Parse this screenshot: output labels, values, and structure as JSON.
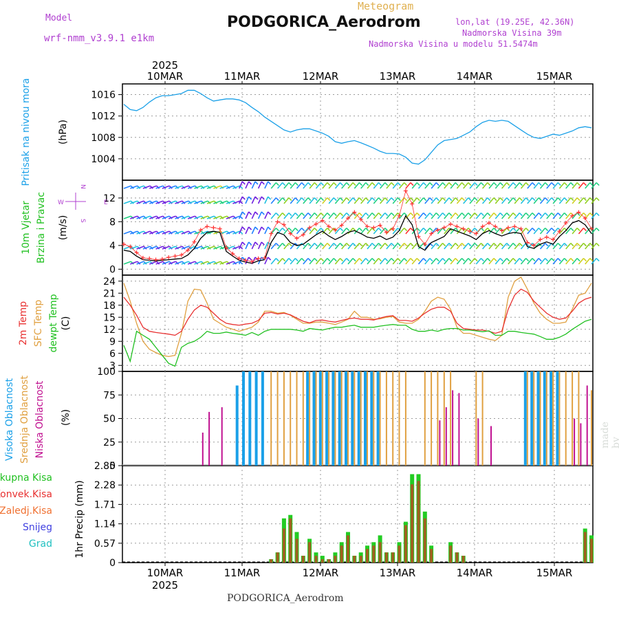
{
  "header": {
    "model_label": "Model",
    "model_value": "wrf-nmm_v3.9.1  e1km",
    "meteogram_label": "Meteogram",
    "station_title": "PODGORICA_Aerodrom",
    "lonlat": "lon,lat (19.25E, 42.36N)",
    "elevation": "Nadmorska Visina 39m",
    "model_elevation": "Nadmorska Visina u modelu 51.5474m"
  },
  "footer": {
    "station_title": "PODGORICA_Aerodrom",
    "watermark": "made by Angel"
  },
  "colors": {
    "pressure": "#1aa0e8",
    "wind_speed": "#000000",
    "gust_marker": "#ff3030",
    "temp_2m": "#e83030",
    "temp_sfc": "#e0a040",
    "dewpoint": "#20c020",
    "high_cloud": "#1aa0e8",
    "mid_cloud": "#e0a040",
    "low_cloud": "#c01090",
    "total_precip": "#22cc22",
    "convective_precip": "#a06020",
    "barb_colors": [
      "#7020e0",
      "#2080ff",
      "#20c0e0",
      "#20d080",
      "#90d020",
      "#d0d020",
      "#ff3030"
    ]
  },
  "chart_data": [
    {
      "type": "line",
      "name": "pressure",
      "ylabel_lines": [
        "Pritisak na nivou mora",
        "(hPa)"
      ],
      "yticks": [
        1004,
        1008,
        1012,
        1016
      ],
      "ylim": [
        1000,
        1018
      ],
      "x_top_labels": [
        "10MAR",
        "11MAR",
        "12MAR",
        "13MAR",
        "14MAR",
        "15MAR"
      ],
      "x_top_year": "2025",
      "series": [
        {
          "values": [
            1014.2,
            1013.2,
            1013.0,
            1013.6,
            1014.6,
            1015.4,
            1015.8,
            1015.8,
            1016.0,
            1016.2,
            1016.8,
            1016.8,
            1016.2,
            1015.4,
            1014.8,
            1015.0,
            1015.2,
            1015.2,
            1015.0,
            1014.5,
            1013.6,
            1012.8,
            1011.8,
            1011.0,
            1010.2,
            1009.4,
            1009.0,
            1009.4,
            1009.6,
            1009.6,
            1009.2,
            1008.8,
            1008.2,
            1007.2,
            1006.9,
            1007.2,
            1007.4,
            1007.0,
            1006.5,
            1006.0,
            1005.4,
            1005.0,
            1005.0,
            1004.9,
            1004.3,
            1003.2,
            1003.0,
            1003.8,
            1005.2,
            1006.6,
            1007.4,
            1007.6,
            1007.8,
            1008.4,
            1009.0,
            1010.0,
            1010.8,
            1011.2,
            1011.0,
            1011.2,
            1011.0,
            1010.2,
            1009.4,
            1008.6,
            1008.0,
            1007.8,
            1008.2,
            1008.6,
            1008.4,
            1008.8,
            1009.2,
            1009.8,
            1010.0,
            1009.8
          ]
        }
      ]
    },
    {
      "type": "line",
      "name": "wind",
      "ylabel_lines": [
        "10m Vjetar",
        "Brzina i Pravac",
        "(m/s)"
      ],
      "compass": {
        "north": "N",
        "south": "S",
        "west": "W",
        "east": "E"
      },
      "yticks": [
        0,
        4,
        8,
        12
      ],
      "ylim": [
        -1,
        15
      ],
      "series": [
        {
          "name": "speed",
          "values": [
            3.2,
            3.0,
            2.2,
            1.6,
            1.5,
            1.4,
            1.5,
            1.6,
            1.7,
            1.8,
            2.4,
            3.5,
            5.2,
            6.2,
            6.4,
            6.2,
            3.0,
            2.2,
            1.5,
            1.2,
            1.0,
            1.4,
            1.6,
            4.5,
            6.2,
            5.8,
            4.5,
            4.0,
            4.2,
            5.0,
            5.8,
            6.4,
            5.6,
            5.0,
            5.5,
            6.2,
            6.5,
            6.0,
            5.4,
            5.2,
            5.6,
            5.0,
            5.4,
            6.5,
            9.0,
            7.5,
            3.8,
            3.2,
            4.5,
            5.0,
            5.5,
            6.8,
            6.4,
            6.0,
            5.6,
            5.0,
            6.0,
            6.5,
            6.0,
            5.6,
            6.0,
            6.2,
            6.0,
            3.8,
            3.5,
            4.2,
            4.6,
            4.2,
            5.5,
            6.5,
            7.8,
            8.2,
            7.5,
            6.0
          ]
        },
        {
          "name": "gust",
          "values": [
            4.2,
            3.8,
            2.8,
            1.9,
            1.8,
            1.6,
            1.7,
            2.0,
            2.2,
            2.4,
            3.2,
            4.6,
            6.6,
            7.2,
            7.0,
            6.8,
            3.6,
            2.6,
            1.8,
            1.5,
            1.3,
            1.8,
            1.9,
            6.0,
            8.0,
            7.5,
            6.0,
            5.2,
            5.8,
            7.0,
            7.6,
            8.2,
            7.2,
            6.6,
            7.4,
            8.6,
            9.6,
            8.4,
            7.2,
            7.0,
            7.4,
            6.2,
            6.8,
            9.0,
            13.2,
            11.0,
            5.5,
            4.2,
            6.0,
            6.6,
            7.0,
            7.6,
            7.2,
            6.8,
            6.4,
            6.0,
            7.2,
            7.8,
            7.2,
            6.5,
            7.0,
            7.2,
            6.8,
            4.5,
            4.0,
            5.0,
            5.4,
            5.0,
            6.4,
            7.8,
            9.0,
            9.6,
            8.6,
            6.8
          ]
        }
      ]
    },
    {
      "type": "line",
      "name": "temperature",
      "ylabel_lines": [
        "2m Temp",
        "SFC Temp",
        "dewpt Temp",
        "(C)"
      ],
      "yticks": [
        3,
        6,
        9,
        12,
        15,
        18,
        21,
        24
      ],
      "ylim": [
        1.5,
        25.5
      ],
      "series": [
        {
          "name": "2m Temp",
          "values": [
            20.0,
            18.0,
            15.5,
            12.5,
            11.5,
            11.2,
            11.0,
            10.8,
            10.5,
            11.5,
            14.5,
            16.8,
            18.0,
            17.5,
            16.0,
            14.5,
            13.5,
            13.2,
            13.0,
            13.3,
            13.5,
            14.2,
            16.0,
            16.2,
            15.8,
            16.0,
            15.6,
            14.8,
            14.0,
            13.6,
            14.2,
            14.3,
            14.0,
            13.8,
            14.2,
            14.6,
            14.8,
            14.5,
            14.5,
            14.3,
            14.8,
            15.2,
            15.4,
            14.2,
            14.2,
            14.0,
            14.8,
            16.0,
            17.0,
            17.5,
            17.5,
            16.5,
            13.5,
            12.2,
            12.0,
            11.8,
            11.8,
            11.5,
            11.0,
            11.5,
            17.0,
            20.5,
            22.0,
            21.2,
            19.0,
            17.5,
            16.0,
            15.0,
            14.5,
            14.8,
            16.5,
            18.5,
            19.5,
            20.0
          ]
        },
        {
          "name": "SFC Temp",
          "values": [
            23.5,
            19.0,
            13.5,
            9.0,
            7.0,
            6.2,
            5.5,
            5.2,
            5.5,
            11.0,
            19.0,
            22.0,
            21.8,
            18.5,
            14.5,
            13.5,
            12.5,
            12.0,
            11.5,
            12.0,
            12.5,
            13.8,
            16.5,
            16.5,
            16.0,
            16.2,
            15.5,
            14.5,
            13.5,
            13.5,
            13.8,
            13.8,
            13.5,
            13.2,
            13.8,
            14.5,
            16.5,
            15.0,
            15.0,
            14.5,
            14.6,
            15.0,
            15.2,
            13.8,
            13.5,
            13.5,
            14.5,
            16.5,
            19.0,
            20.0,
            19.5,
            17.0,
            12.5,
            11.0,
            11.0,
            10.5,
            10.0,
            9.5,
            9.2,
            10.5,
            20.0,
            24.0,
            25.0,
            22.0,
            18.5,
            16.0,
            14.5,
            13.5,
            13.5,
            13.8,
            17.0,
            20.5,
            21.0,
            23.5
          ]
        },
        {
          "name": "dewpt Temp",
          "values": [
            8.0,
            4.0,
            11.5,
            10.5,
            9.5,
            7.5,
            5.5,
            3.5,
            2.8,
            7.5,
            8.5,
            9.0,
            10.0,
            11.5,
            11.0,
            11.0,
            11.3,
            11.0,
            10.8,
            10.5,
            11.2,
            10.5,
            11.5,
            12.0,
            12.0,
            12.0,
            12.0,
            11.8,
            11.5,
            12.2,
            12.0,
            11.8,
            12.2,
            12.5,
            12.5,
            12.8,
            13.0,
            12.5,
            12.5,
            12.5,
            12.8,
            13.0,
            13.2,
            13.0,
            13.0,
            12.0,
            11.5,
            11.5,
            11.8,
            11.5,
            12.0,
            12.2,
            12.2,
            11.8,
            11.8,
            11.6,
            11.4,
            11.6,
            10.5,
            10.5,
            11.5,
            11.5,
            11.2,
            11.0,
            10.8,
            10.2,
            9.5,
            9.5,
            10.0,
            10.8,
            12.0,
            13.0,
            14.0,
            14.5
          ]
        }
      ]
    },
    {
      "type": "bar",
      "name": "cloud",
      "ylabel_lines": [
        "Visoka Oblacnost",
        "Srednja Oblacnost",
        "Niska Oblacnost",
        "(%)"
      ],
      "yticks": [
        0,
        25,
        50,
        75,
        100
      ],
      "ylim": [
        0,
        100
      ],
      "series": [
        {
          "name": "Visoka Oblacnost",
          "values": [
            0,
            0,
            0,
            0,
            0,
            0,
            0,
            0,
            0,
            0,
            0,
            0,
            0,
            0,
            0,
            0,
            0,
            0,
            85,
            100,
            100,
            100,
            100,
            0,
            0,
            0,
            0,
            0,
            0,
            100,
            100,
            100,
            100,
            100,
            100,
            100,
            100,
            100,
            100,
            100,
            100,
            0,
            0,
            0,
            0,
            0,
            0,
            0,
            0,
            0,
            0,
            0,
            0,
            0,
            0,
            0,
            0,
            0,
            0,
            0,
            0,
            0,
            0,
            100,
            100,
            100,
            100,
            100,
            100,
            0,
            0,
            0,
            0,
            0
          ]
        },
        {
          "name": "Srednja Oblacnost",
          "values": [
            0,
            0,
            0,
            0,
            0,
            0,
            0,
            0,
            0,
            0,
            0,
            0,
            0,
            0,
            0,
            0,
            0,
            0,
            0,
            0,
            0,
            0,
            0,
            100,
            100,
            100,
            100,
            100,
            100,
            100,
            100,
            100,
            100,
            100,
            100,
            100,
            100,
            100,
            100,
            100,
            100,
            100,
            100,
            100,
            100,
            0,
            0,
            100,
            100,
            100,
            100,
            100,
            0,
            0,
            0,
            100,
            100,
            0,
            0,
            0,
            0,
            0,
            0,
            100,
            100,
            100,
            100,
            100,
            100,
            100,
            100,
            100,
            0,
            80
          ]
        },
        {
          "name": "Niska Oblacnost",
          "values": [
            0,
            0,
            0,
            0,
            0,
            0,
            0,
            0,
            0,
            0,
            0,
            0,
            35,
            57,
            0,
            62,
            0,
            0,
            0,
            0,
            0,
            0,
            0,
            0,
            0,
            0,
            0,
            0,
            0,
            0,
            0,
            0,
            0,
            0,
            0,
            0,
            0,
            0,
            0,
            0,
            0,
            0,
            0,
            0,
            0,
            0,
            0,
            0,
            0,
            48,
            62,
            80,
            77,
            0,
            0,
            50,
            0,
            42,
            0,
            0,
            0,
            0,
            0,
            0,
            0,
            0,
            0,
            0,
            0,
            0,
            50,
            45,
            85,
            0
          ]
        }
      ]
    },
    {
      "type": "bar",
      "name": "precipitation",
      "ylabel_lines": [
        "1hr Precip (mm)"
      ],
      "legend_lines": [
        "Ukupna Kisa",
        "Konvek.Kisa",
        "Zaledj.Kisa",
        "Snijeg",
        "Grad"
      ],
      "yticks": [
        0,
        0.57,
        1.14,
        1.71,
        2.28,
        2.85
      ],
      "ylim": [
        0,
        2.85
      ],
      "x_bottom_labels": [
        "10MAR",
        "11MAR",
        "12MAR",
        "13MAR",
        "14MAR",
        "15MAR"
      ],
      "x_bottom_year": "2025",
      "series": [
        {
          "name": "Ukupna Kisa",
          "values": [
            0,
            0,
            0,
            0,
            0,
            0,
            0,
            0,
            0,
            0,
            0,
            0,
            0,
            0,
            0,
            0,
            0,
            0,
            0,
            0,
            0,
            0,
            0,
            0.1,
            0.3,
            1.3,
            1.4,
            0.9,
            0.2,
            0.7,
            0.3,
            0.2,
            0.1,
            0.3,
            0.6,
            0.9,
            0.2,
            0.3,
            0.5,
            0.6,
            0.8,
            0.3,
            0.3,
            0.6,
            1.2,
            2.6,
            2.6,
            1.5,
            0.5,
            0,
            0,
            0.6,
            0.3,
            0.2,
            0,
            0,
            0,
            0,
            0,
            0,
            0,
            0,
            0,
            0,
            0,
            0,
            0,
            0,
            0,
            0,
            0,
            0,
            1.0,
            0.8
          ]
        },
        {
          "name": "Konvek.Kisa",
          "values": [
            0,
            0,
            0,
            0,
            0,
            0,
            0,
            0,
            0,
            0,
            0,
            0,
            0,
            0,
            0,
            0,
            0,
            0,
            0,
            0,
            0,
            0,
            0,
            0.1,
            0.3,
            1.0,
            1.3,
            0.7,
            0.2,
            0.6,
            0.2,
            0.1,
            0.1,
            0.2,
            0.5,
            0.8,
            0.2,
            0.2,
            0.4,
            0.5,
            0.6,
            0.3,
            0.3,
            0.5,
            1.1,
            2.3,
            2.4,
            1.3,
            0.4,
            0,
            0,
            0.5,
            0.3,
            0.2,
            0,
            0,
            0,
            0,
            0,
            0,
            0,
            0,
            0,
            0,
            0,
            0,
            0,
            0,
            0,
            0,
            0,
            0,
            0.9,
            0.7
          ]
        }
      ]
    }
  ]
}
